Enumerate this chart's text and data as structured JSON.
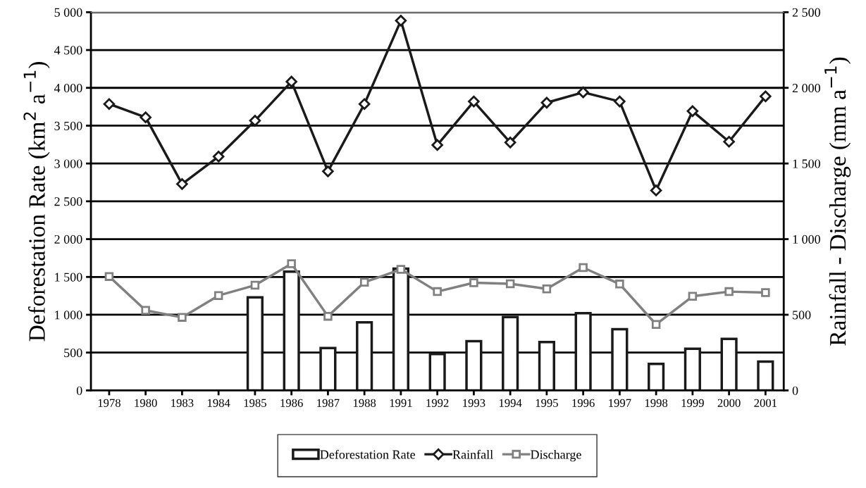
{
  "chart_data": {
    "type": "bar",
    "categories": [
      "1978",
      "1980",
      "1983",
      "1984",
      "1985",
      "1986",
      "1987",
      "1988",
      "1991",
      "1992",
      "1993",
      "1994",
      "1995",
      "1996",
      "1997",
      "1998",
      "1999",
      "2000",
      "2001"
    ],
    "series": [
      {
        "name": "Deforestation Rate",
        "color": "#ffffff",
        "values": [
          null,
          null,
          null,
          null,
          1230,
          1570,
          560,
          900,
          1610,
          480,
          650,
          970,
          640,
          1020,
          810,
          350,
          550,
          680,
          380
        ]
      },
      {
        "name": "Rainfall",
        "type": "line",
        "axis": "y2",
        "color": "#1a1a1a",
        "marker": "diamond",
        "values": [
          1893,
          1805,
          1364,
          1546,
          1783,
          2041,
          1448,
          1893,
          2444,
          1622,
          1910,
          1639,
          1902,
          1970,
          1910,
          1322,
          1846,
          1644,
          1944
        ]
      },
      {
        "name": "Discharge",
        "type": "line",
        "axis": "y2",
        "color": "#808080",
        "marker": "square",
        "values": [
          753,
          529,
          483,
          627,
          695,
          837,
          490,
          715,
          800,
          653,
          712,
          705,
          671,
          812,
          703,
          436,
          622,
          653,
          647
        ]
      }
    ],
    "ylabel": "Deforestation Rate (km$^{2}$ a$^{−1}$)",
    "y2label": "Rainfall - Discharge (mm a$^{−1}$)",
    "ylim": [
      0,
      5000
    ],
    "yticks": [
      0,
      500,
      {
        "value": 1000,
        "label": "1 000"
      },
      {
        "value": 1500,
        "label": "1 500"
      },
      {
        "value": 2000,
        "label": "2 000"
      },
      {
        "value": 2500,
        "label": "2 500"
      },
      {
        "value": 3000,
        "label": "3 000"
      },
      {
        "value": 3500,
        "label": "3 500"
      },
      {
        "value": 4000,
        "label": "4 000"
      },
      {
        "value": 4500,
        "label": "4 500"
      },
      {
        "value": 5000,
        "label": "5 000"
      }
    ],
    "y2lim": [
      0,
      2500
    ],
    "y2ticks": [
      0,
      500,
      {
        "value": 1000,
        "label": "1 000"
      },
      {
        "value": 1500,
        "label": "1 500"
      },
      {
        "value": 2000,
        "label": "2 000"
      },
      {
        "value": 2500,
        "label": "2 500"
      }
    ],
    "grid": "y",
    "legend": "bottom"
  }
}
